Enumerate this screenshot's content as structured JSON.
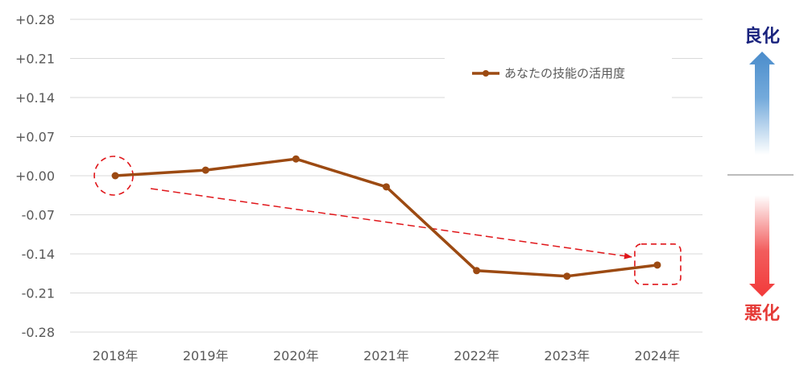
{
  "chart_data": {
    "type": "line",
    "title": "",
    "xlabel": "",
    "ylabel": "",
    "categories": [
      "2018年",
      "2019年",
      "2020年",
      "2021年",
      "2022年",
      "2023年",
      "2024年"
    ],
    "y_ticks": [
      "+0.28",
      "+0.21",
      "+0.14",
      "+0.07",
      "+0.00",
      "-0.07",
      "-0.14",
      "-0.21",
      "-0.28"
    ],
    "ylim": [
      -0.28,
      0.28
    ],
    "grid": true,
    "legend_position": "top-right",
    "series": [
      {
        "name": "あなたの技能の活用度",
        "color": "#9C4A12",
        "values": [
          0.0,
          0.01,
          0.03,
          -0.02,
          -0.17,
          -0.18,
          -0.16
        ]
      }
    ],
    "annotations": {
      "trend_arrow": {
        "from_category": "2018年",
        "to_category": "2024年",
        "color": "#E0161A",
        "style": "dashed"
      },
      "highlight_start": {
        "category": "2018年",
        "shape": "circle",
        "color": "#E0161A"
      },
      "highlight_end": {
        "category": "2024年",
        "shape": "rounded-rect",
        "color": "#E0161A"
      }
    }
  },
  "side_indicator": {
    "improve_label": "良化",
    "improve_color": "#1A237E",
    "worsen_label": "悪化",
    "worsen_color": "#E53935",
    "up_arrow_color": "#5B9BD5",
    "down_arrow_color": "#F04040"
  }
}
